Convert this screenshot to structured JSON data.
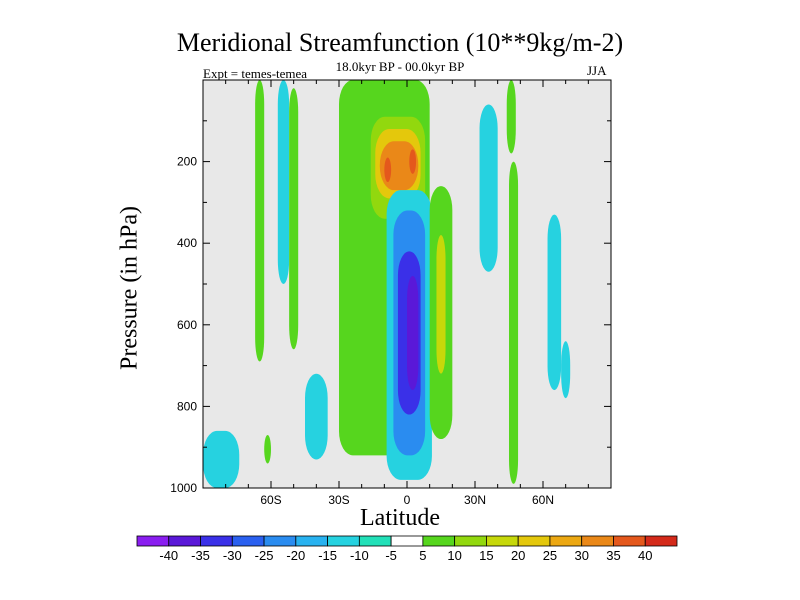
{
  "chart_data": {
    "type": "contour",
    "title": "Meridional Streamfunction (10**9kg/m-2)",
    "subtitle": "18.0kyr BP - 00.0kyr BP",
    "left_label": "Expt = temes-temea",
    "right_label": "JJA",
    "xlabel": "Latitude",
    "ylabel": "Pressure (in hPa)",
    "xlim": [
      -90,
      90
    ],
    "ylim": [
      0,
      1000
    ],
    "x_ticks": [
      {
        "value": -60,
        "label": "60S"
      },
      {
        "value": -30,
        "label": "30S"
      },
      {
        "value": 0,
        "label": "0"
      },
      {
        "value": 30,
        "label": "30N"
      },
      {
        "value": 60,
        "label": "60N"
      }
    ],
    "y_ticks": [
      {
        "value": 200,
        "label": "200"
      },
      {
        "value": 400,
        "label": "400"
      },
      {
        "value": 600,
        "label": "600"
      },
      {
        "value": 800,
        "label": "800"
      },
      {
        "value": 1000,
        "label": "1000"
      }
    ],
    "background_color": "#e8e8e8",
    "levels": [
      -40,
      -35,
      -30,
      -25,
      -20,
      -15,
      -10,
      -5,
      5,
      10,
      15,
      20,
      25,
      30,
      35,
      40
    ],
    "colorbar_colors": [
      "#8a1ef0",
      "#5a18d8",
      "#3a30e8",
      "#2a60f0",
      "#2a8cf0",
      "#28b2f0",
      "#26d2e0",
      "#22e0b8",
      "#ffffff",
      "#56d61e",
      "#92d80e",
      "#c6d80a",
      "#e4c80c",
      "#eca812",
      "#ea8818",
      "#e4581c",
      "#d42a1a"
    ],
    "regions": [
      {
        "name": "neg-south-ocean",
        "level": -10,
        "lat": [
          -90,
          -74
        ],
        "p": [
          860,
          1000
        ]
      },
      {
        "name": "pos-70s",
        "level": 5,
        "lat": [
          -67,
          -63
        ],
        "p": [
          0,
          690
        ]
      },
      {
        "name": "neg-60s",
        "level": -10,
        "lat": [
          -57,
          -52
        ],
        "p": [
          0,
          500
        ]
      },
      {
        "name": "pos-50s",
        "level": 5,
        "lat": [
          -52,
          -48
        ],
        "p": [
          20,
          660
        ]
      },
      {
        "name": "pos-60s-low",
        "level": 5,
        "lat": [
          -63,
          -60
        ],
        "p": [
          870,
          940
        ]
      },
      {
        "name": "neg-40s-low",
        "level": -10,
        "lat": [
          -45,
          -35
        ],
        "p": [
          720,
          930
        ]
      },
      {
        "name": "pos-main-band",
        "level": 5,
        "lat": [
          -30,
          10
        ],
        "p": [
          0,
          920
        ]
      },
      {
        "name": "pos-cell-10",
        "level": 10,
        "lat": [
          -16,
          8
        ],
        "p": [
          90,
          340
        ]
      },
      {
        "name": "pos-cell-20",
        "level": 20,
        "lat": [
          -14,
          6
        ],
        "p": [
          120,
          290
        ]
      },
      {
        "name": "pos-cell-30",
        "level": 30,
        "lat": [
          -12,
          5
        ],
        "p": [
          150,
          270
        ]
      },
      {
        "name": "pos-cell-max-s",
        "level": 35,
        "lat": [
          -10,
          -7
        ],
        "p": [
          190,
          250
        ]
      },
      {
        "name": "pos-cell-max-n",
        "level": 35,
        "lat": [
          1,
          4
        ],
        "p": [
          170,
          230
        ]
      },
      {
        "name": "neg-main-cell",
        "level": -10,
        "lat": [
          -9,
          11
        ],
        "p": [
          270,
          980
        ]
      },
      {
        "name": "neg-main-20",
        "level": -20,
        "lat": [
          -6,
          8
        ],
        "p": [
          320,
          920
        ]
      },
      {
        "name": "neg-main-30",
        "level": -30,
        "lat": [
          -4,
          6
        ],
        "p": [
          420,
          820
        ]
      },
      {
        "name": "neg-main-35",
        "level": -35,
        "lat": [
          0,
          5
        ],
        "p": [
          480,
          760
        ]
      },
      {
        "name": "pos-15n",
        "level": 5,
        "lat": [
          10,
          20
        ],
        "p": [
          260,
          880
        ]
      },
      {
        "name": "pos-15n-core",
        "level": 15,
        "lat": [
          13,
          17
        ],
        "p": [
          380,
          720
        ]
      },
      {
        "name": "neg-30n",
        "level": -10,
        "lat": [
          32,
          40
        ],
        "p": [
          60,
          470
        ]
      },
      {
        "name": "pos-40n",
        "level": 5,
        "lat": [
          44,
          48
        ],
        "p": [
          0,
          180
        ]
      },
      {
        "name": "pos-45n",
        "level": 5,
        "lat": [
          45,
          49
        ],
        "p": [
          200,
          990
        ]
      },
      {
        "name": "neg-65n",
        "level": -10,
        "lat": [
          62,
          68
        ],
        "p": [
          330,
          760
        ]
      },
      {
        "name": "neg-70n",
        "level": -10,
        "lat": [
          68,
          72
        ],
        "p": [
          640,
          780
        ]
      }
    ],
    "colorbar_labels": [
      "-40",
      "-35",
      "-30",
      "-25",
      "-20",
      "-15",
      "-10",
      "-5",
      "5",
      "10",
      "15",
      "20",
      "25",
      "30",
      "35",
      "40"
    ]
  }
}
